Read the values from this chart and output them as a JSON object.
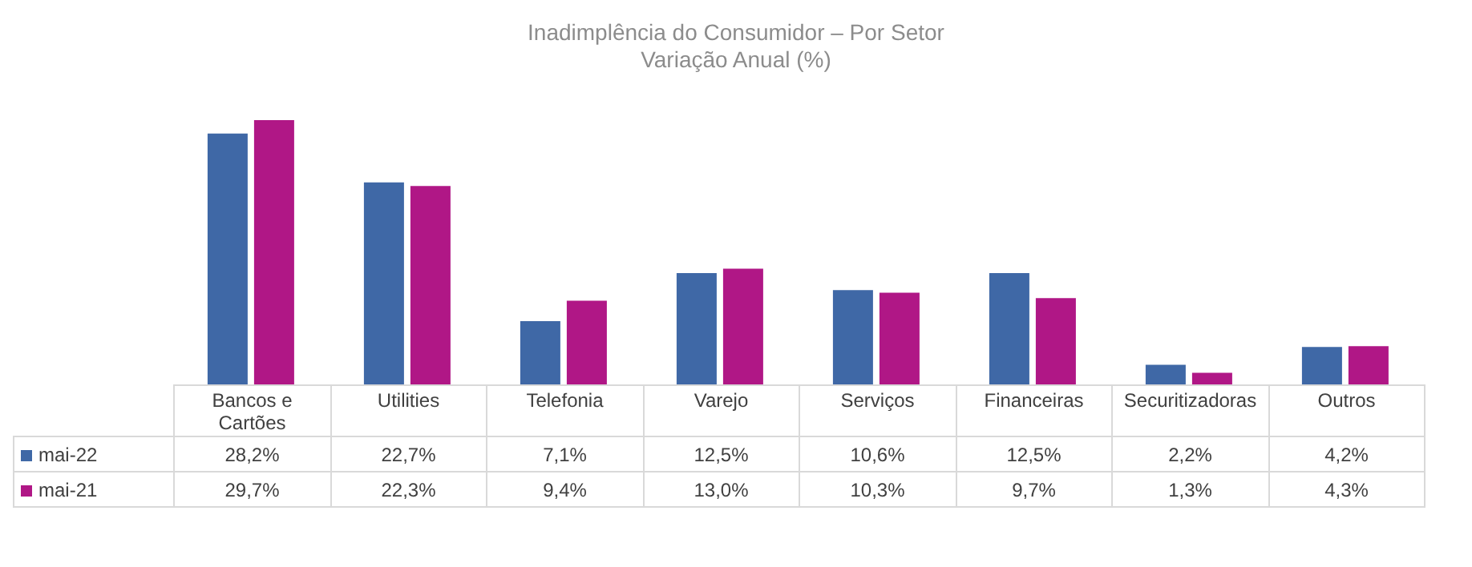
{
  "chart_data": {
    "type": "bar",
    "title": "Inadimplência  do Consumidor – Por Setor",
    "subtitle": "Variação Anual (%)",
    "categories": [
      "Bancos e Cartões",
      "Utilities",
      "Telefonia",
      "Varejo",
      "Serviços",
      "Financeiras",
      "Securitizadoras",
      "Outros"
    ],
    "series": [
      {
        "name": "mai-22",
        "color": "#3f68a6",
        "values": [
          28.2,
          22.7,
          7.1,
          12.5,
          10.6,
          12.5,
          2.2,
          4.2
        ],
        "value_labels": [
          "28,2%",
          "22,7%",
          "7,1%",
          "12,5%",
          "10,6%",
          "12,5%",
          "2,2%",
          "4,2%"
        ]
      },
      {
        "name": "mai-21",
        "color": "#b01786",
        "values": [
          29.7,
          22.3,
          9.4,
          13.0,
          10.3,
          9.7,
          1.3,
          4.3
        ],
        "value_labels": [
          "29,7%",
          "22,3%",
          "9,4%",
          "13,0%",
          "10,3%",
          "9,7%",
          "1,3%",
          "4,3%"
        ]
      }
    ],
    "legend": "bottom left",
    "grid": false
  }
}
